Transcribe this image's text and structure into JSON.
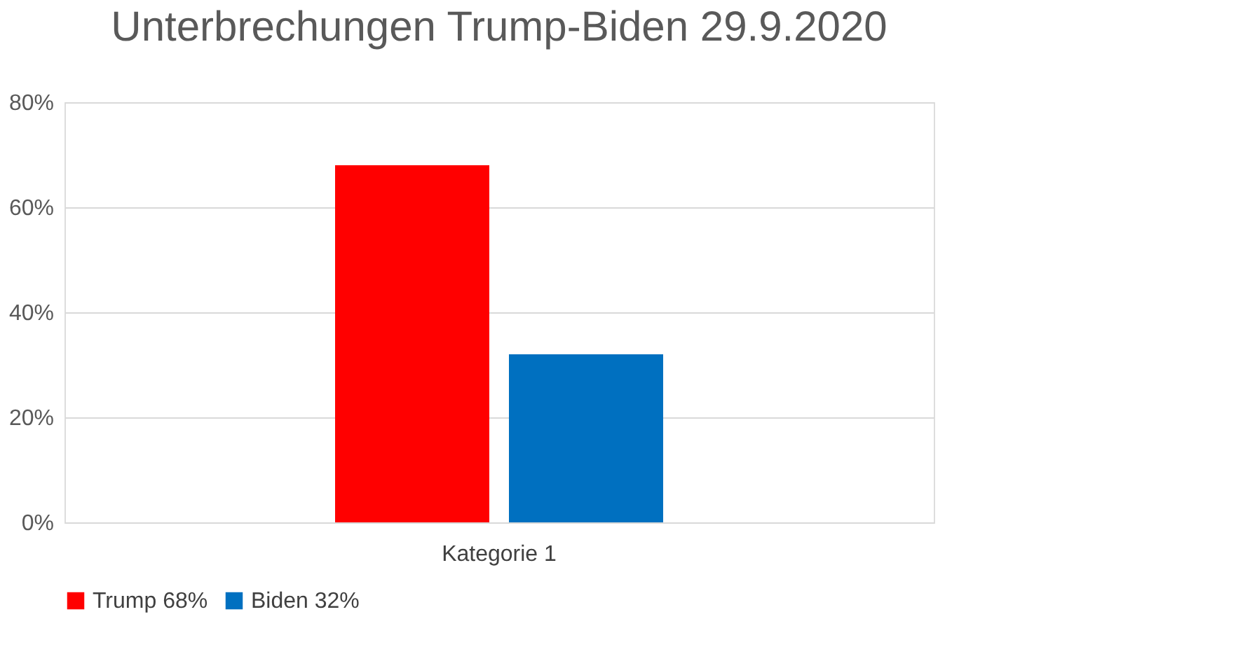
{
  "chart_data": {
    "type": "bar",
    "title": "Unterbrechungen Trump-Biden 29.9.2020",
    "categories": [
      "Kategorie 1"
    ],
    "series": [
      {
        "name": "Trump 68%",
        "color": "#ff0000",
        "values": [
          68
        ]
      },
      {
        "name": "Biden 32%",
        "color": "#0070c0",
        "values": [
          32
        ]
      }
    ],
    "ylim": [
      0,
      80
    ],
    "yticks": [
      {
        "value": 0,
        "label": "0%"
      },
      {
        "value": 20,
        "label": "20%"
      },
      {
        "value": 40,
        "label": "40%"
      },
      {
        "value": 60,
        "label": "60%"
      },
      {
        "value": 80,
        "label": "80%"
      }
    ],
    "grid": "y",
    "legend": "bottom"
  }
}
